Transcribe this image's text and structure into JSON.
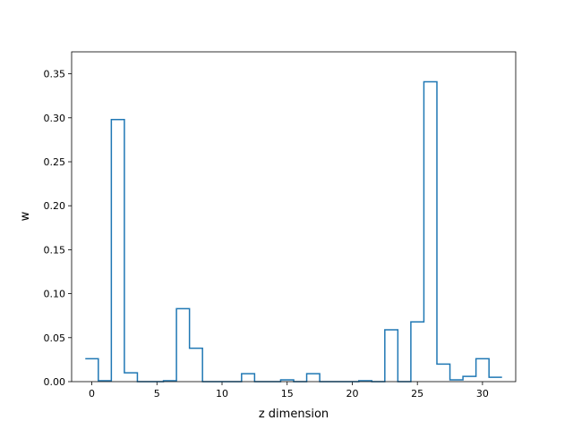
{
  "chart_data": {
    "type": "step",
    "title": "",
    "xlabel": "z dimension",
    "ylabel": "w",
    "xlim": [
      -1.55,
      32.55
    ],
    "ylim": [
      0,
      0.375
    ],
    "xticks": [
      0,
      5,
      10,
      15,
      20,
      25,
      30
    ],
    "xtick_labels": [
      "0",
      "5",
      "10",
      "15",
      "20",
      "25",
      "30"
    ],
    "yticks": [
      0,
      0.05,
      0.1,
      0.15,
      0.2,
      0.25,
      0.3,
      0.35
    ],
    "ytick_labels": [
      "0.00",
      "0.05",
      "0.10",
      "0.15",
      "0.20",
      "0.25",
      "0.30",
      "0.35"
    ],
    "grid": false,
    "line_color": "#1f77b4",
    "series": [
      {
        "x": [
          0,
          1,
          2,
          3,
          4,
          5,
          6,
          7,
          8,
          9,
          10,
          11,
          12,
          13,
          14,
          15,
          16,
          17,
          18,
          19,
          20,
          21,
          22,
          23,
          24,
          25,
          26,
          27,
          28,
          29,
          30,
          31
        ],
        "values": [
          0.026,
          0.001,
          0.298,
          0.01,
          0.0,
          0.0,
          0.001,
          0.083,
          0.038,
          0.0,
          0.0,
          0.0,
          0.009,
          0.0,
          0.0,
          0.002,
          0.0,
          0.009,
          0.0,
          0.0,
          0.0,
          0.001,
          0.0,
          0.059,
          0.0,
          0.068,
          0.341,
          0.02,
          0.002,
          0.006,
          0.026,
          0.005
        ]
      }
    ]
  }
}
